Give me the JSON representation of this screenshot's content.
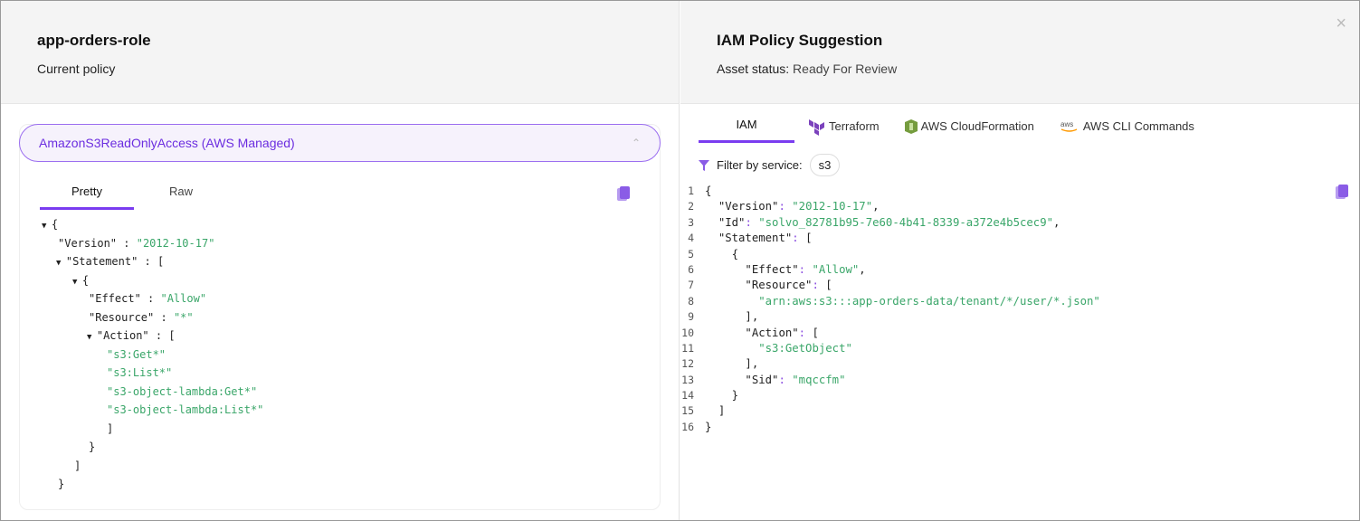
{
  "left": {
    "title": "app-orders-role",
    "subtitle": "Current policy",
    "accordion": {
      "label": "AmazonS3ReadOnlyAccess (AWS Managed)",
      "icon": "chevron-up-icon"
    },
    "tabs": [
      "Pretty",
      "Raw"
    ],
    "active_tab": "Pretty",
    "tree": [
      {
        "i": 0,
        "t": true,
        "parts": [
          [
            "p",
            "{"
          ]
        ]
      },
      {
        "i": 1,
        "parts": [
          [
            "k",
            "\"Version\""
          ],
          [
            "p",
            " : "
          ],
          [
            "s",
            "\"2012-10-17\""
          ]
        ]
      },
      {
        "i": 1,
        "t": true,
        "parts": [
          [
            "k",
            "\"Statement\""
          ],
          [
            "p",
            " : ["
          ]
        ]
      },
      {
        "i": 2,
        "t": true,
        "parts": [
          [
            "p",
            "{"
          ]
        ]
      },
      {
        "i": 3,
        "parts": [
          [
            "k",
            "\"Effect\""
          ],
          [
            "p",
            " : "
          ],
          [
            "s",
            "\"Allow\""
          ]
        ]
      },
      {
        "i": 3,
        "parts": [
          [
            "k",
            "\"Resource\""
          ],
          [
            "p",
            " : "
          ],
          [
            "s",
            "\"*\""
          ]
        ]
      },
      {
        "i": 3,
        "t": true,
        "parts": [
          [
            "k",
            "\"Action\""
          ],
          [
            "p",
            " : ["
          ]
        ]
      },
      {
        "i": 4,
        "parts": [
          [
            "s",
            "\"s3:Get*\""
          ]
        ]
      },
      {
        "i": 4,
        "parts": [
          [
            "s",
            "\"s3:List*\""
          ]
        ]
      },
      {
        "i": 4,
        "parts": [
          [
            "s",
            "\"s3-object-lambda:Get*\""
          ]
        ]
      },
      {
        "i": 4,
        "parts": [
          [
            "s",
            "\"s3-object-lambda:List*\""
          ]
        ]
      },
      {
        "i": 4,
        "parts": [
          [
            "p",
            "]"
          ]
        ]
      },
      {
        "i": 3,
        "parts": [
          [
            "p",
            "}"
          ]
        ]
      },
      {
        "i": 2,
        "parts": [
          [
            "p",
            "]"
          ]
        ]
      },
      {
        "i": 1,
        "parts": [
          [
            "p",
            "}"
          ]
        ]
      }
    ]
  },
  "right": {
    "title": "IAM Policy Suggestion",
    "status_label": "Asset status:",
    "status_value": "Ready For Review",
    "tabs": [
      {
        "label": "IAM",
        "icon": ""
      },
      {
        "label": "Terraform",
        "icon": "terraform-icon"
      },
      {
        "label": "AWS CloudFormation",
        "icon": "cloudformation-icon"
      },
      {
        "label": "AWS CLI Commands",
        "icon": "aws-icon"
      }
    ],
    "active_tab": "IAM",
    "filter_label": "Filter by service:",
    "filter_value": "s3",
    "code": [
      [
        0,
        [
          [
            "p",
            "{"
          ]
        ]
      ],
      [
        1,
        [
          [
            "k",
            "\"Version\""
          ],
          [
            "c",
            ": "
          ],
          [
            "s",
            "\"2012-10-17\""
          ],
          [
            "p",
            ","
          ]
        ]
      ],
      [
        1,
        [
          [
            "k",
            "\"Id\""
          ],
          [
            "c",
            ": "
          ],
          [
            "s",
            "\"solvo_82781b95-7e60-4b41-8339-a372e4b5cec9\""
          ],
          [
            "p",
            ","
          ]
        ]
      ],
      [
        1,
        [
          [
            "k",
            "\"Statement\""
          ],
          [
            "c",
            ": "
          ],
          [
            "p",
            "["
          ]
        ]
      ],
      [
        2,
        [
          [
            "p",
            "{"
          ]
        ]
      ],
      [
        3,
        [
          [
            "k",
            "\"Effect\""
          ],
          [
            "c",
            ": "
          ],
          [
            "s",
            "\"Allow\""
          ],
          [
            "p",
            ","
          ]
        ]
      ],
      [
        3,
        [
          [
            "k",
            "\"Resource\""
          ],
          [
            "c",
            ": "
          ],
          [
            "p",
            "["
          ]
        ]
      ],
      [
        4,
        [
          [
            "s",
            "\"arn:aws:s3:::app-orders-data/tenant/*/user/*.json\""
          ]
        ]
      ],
      [
        3,
        [
          [
            "p",
            "],"
          ]
        ]
      ],
      [
        3,
        [
          [
            "k",
            "\"Action\""
          ],
          [
            "c",
            ": "
          ],
          [
            "p",
            "["
          ]
        ]
      ],
      [
        4,
        [
          [
            "s",
            "\"s3:GetObject\""
          ]
        ]
      ],
      [
        3,
        [
          [
            "p",
            "],"
          ]
        ]
      ],
      [
        3,
        [
          [
            "k",
            "\"Sid\""
          ],
          [
            "c",
            ": "
          ],
          [
            "s",
            "\"mqccfm\""
          ]
        ]
      ],
      [
        2,
        [
          [
            "p",
            "}"
          ]
        ]
      ],
      [
        1,
        [
          [
            "p",
            "]"
          ]
        ]
      ],
      [
        0,
        [
          [
            "p",
            "}"
          ]
        ]
      ]
    ]
  },
  "colors": {
    "accent": "#7a3cf0",
    "string": "#3aa669"
  },
  "close_icon": "×"
}
